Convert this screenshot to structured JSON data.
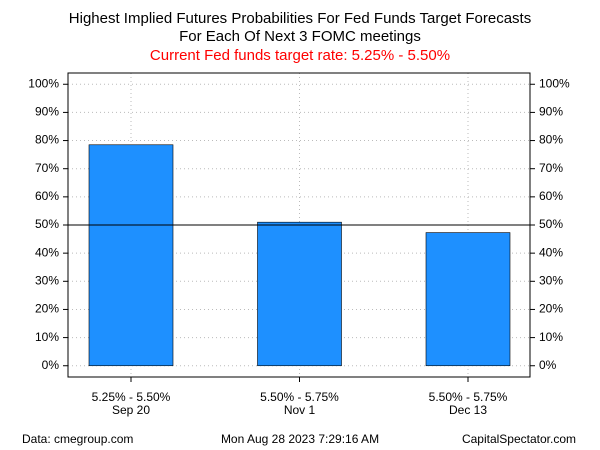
{
  "chart_data": {
    "type": "bar",
    "title": "Highest Implied Futures Probabilities For Fed Funds Target Forecasts",
    "subtitle": "For Each Of Next 3 FOMC meetings",
    "note": "Current Fed funds target rate: 5.25% - 5.50%",
    "categories": [
      [
        "5.25% - 5.50%",
        "Sep 20"
      ],
      [
        "5.50% - 5.75%",
        "Nov 1"
      ],
      [
        "5.50% - 5.75%",
        "Dec 13"
      ]
    ],
    "values": [
      78.5,
      51,
      47.3
    ],
    "color": "#1e90ff",
    "note_color": "#ff0000",
    "reference_line": 50,
    "ylim": [
      -4,
      104
    ],
    "yticks": [
      {
        "value": 0,
        "label": "0%"
      },
      {
        "value": 10,
        "label": "10%"
      },
      {
        "value": 20,
        "label": "20%"
      },
      {
        "value": 30,
        "label": "30%"
      },
      {
        "value": 40,
        "label": "40%"
      },
      {
        "value": 50,
        "label": "50%"
      },
      {
        "value": 60,
        "label": "60%"
      },
      {
        "value": 70,
        "label": "70%"
      },
      {
        "value": 80,
        "label": "80%"
      },
      {
        "value": 90,
        "label": "90%"
      },
      {
        "value": 100,
        "label": "100%"
      }
    ],
    "grid": true,
    "footer": {
      "left": "Data: cmegroup.com",
      "center": "Mon Aug 28 2023 7:29:16 AM",
      "right": "CapitalSpectator.com"
    }
  }
}
